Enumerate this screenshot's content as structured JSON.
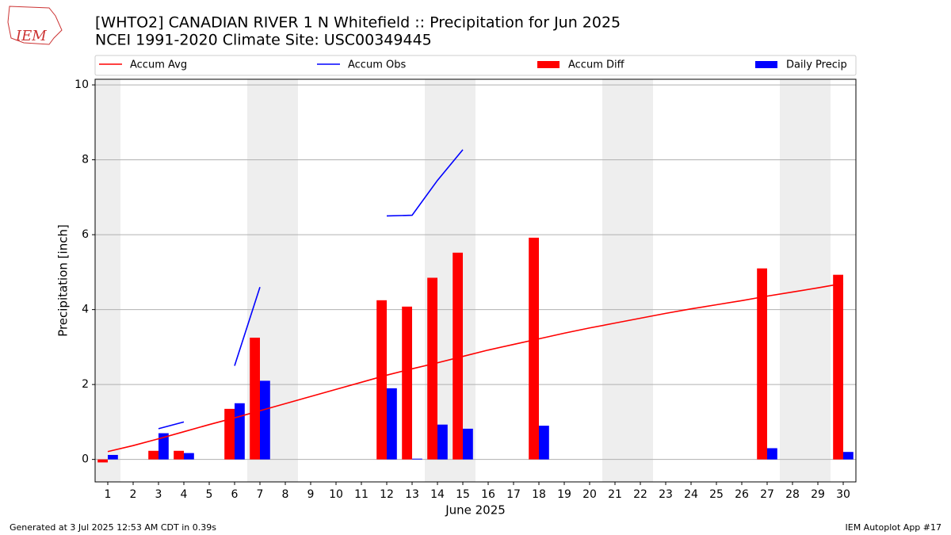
{
  "chart_data": {
    "type": "bar_line",
    "title": "[WHTO2] CANADIAN RIVER 1 N Whitefield :: Precipitation for Jun 2025",
    "subtitle": "NCEI 1991-2020 Climate Site: USC00349445",
    "logo_text": "IEM",
    "ylabel": "Precipitation [inch]",
    "xlabel": "June 2025",
    "footer_left": "Generated at 3 Jul 2025 12:53 AM CDT in 0.39s",
    "footer_right": "IEM Autoplot App #17",
    "x": [
      1,
      2,
      3,
      4,
      5,
      6,
      7,
      8,
      9,
      10,
      11,
      12,
      13,
      14,
      15,
      16,
      17,
      18,
      19,
      20,
      21,
      22,
      23,
      24,
      25,
      26,
      27,
      28,
      29,
      30
    ],
    "xlim": [
      0.5,
      30.5
    ],
    "xticks": [
      1,
      2,
      3,
      4,
      5,
      6,
      7,
      8,
      9,
      10,
      11,
      12,
      13,
      14,
      15,
      16,
      17,
      18,
      19,
      20,
      21,
      22,
      23,
      24,
      25,
      26,
      27,
      28,
      29,
      30
    ],
    "ylim": [
      -0.6,
      10.15
    ],
    "yticks": [
      0,
      2,
      4,
      6,
      8,
      10
    ],
    "grid": true,
    "shaded_ranges": [
      [
        0.5,
        1.5
      ],
      [
        6.5,
        8.5
      ],
      [
        13.5,
        15.5
      ],
      [
        20.5,
        22.5
      ],
      [
        27.5,
        29.5
      ]
    ],
    "shade_color": "#eeeeee",
    "series": [
      {
        "name": "Accum Avg",
        "kind": "line",
        "color": "#ff0000",
        "values": [
          0.21,
          0.37,
          0.55,
          0.74,
          0.93,
          1.11,
          1.3,
          1.49,
          1.68,
          1.87,
          2.06,
          2.25,
          2.42,
          2.58,
          2.75,
          2.92,
          3.07,
          3.22,
          3.37,
          3.51,
          3.64,
          3.77,
          3.9,
          4.02,
          4.13,
          4.24,
          4.36,
          4.47,
          4.58,
          4.7
        ]
      },
      {
        "name": "Accum Obs",
        "kind": "line",
        "color": "#0000ff",
        "values": [
          null,
          null,
          0.82,
          1.0,
          null,
          2.5,
          4.6,
          null,
          null,
          null,
          null,
          6.5,
          6.52,
          7.45,
          8.27,
          null,
          null,
          null,
          null,
          null,
          null,
          null,
          null,
          null,
          null,
          null,
          null,
          null,
          null,
          null
        ]
      },
      {
        "name": "Accum Diff",
        "kind": "bar",
        "side": "left",
        "color": "#ff0000",
        "values": [
          -0.08,
          null,
          0.23,
          0.23,
          null,
          1.35,
          3.25,
          null,
          null,
          null,
          null,
          4.25,
          4.08,
          4.85,
          5.52,
          null,
          null,
          5.92,
          null,
          null,
          null,
          null,
          null,
          null,
          null,
          null,
          5.1,
          null,
          null,
          4.93
        ]
      },
      {
        "name": "Daily Precip",
        "kind": "bar",
        "side": "right",
        "color": "#0000ff",
        "values": [
          0.12,
          0,
          0.7,
          0.17,
          0,
          1.5,
          2.1,
          0,
          0,
          0,
          0,
          1.9,
          0.02,
          0.93,
          0.82,
          0,
          0,
          0.9,
          0,
          0,
          0,
          0,
          0,
          0,
          0,
          0,
          0.3,
          0,
          0,
          0.2
        ]
      }
    ]
  }
}
